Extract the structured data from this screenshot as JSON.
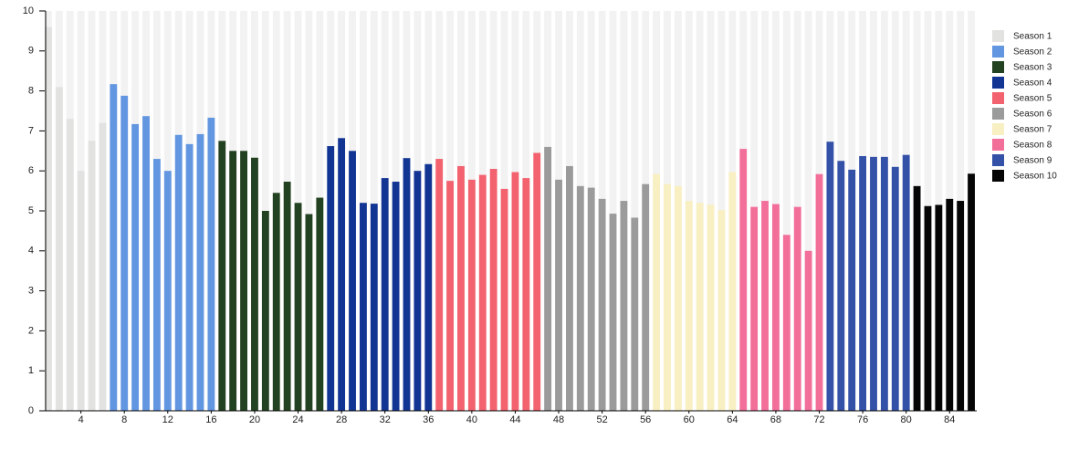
{
  "chart_data": {
    "type": "bar",
    "xlim": [
      0.5,
      86.5
    ],
    "xticks": [
      4,
      8,
      12,
      16,
      20,
      24,
      28,
      32,
      36,
      40,
      44,
      48,
      52,
      56,
      60,
      64,
      68,
      72,
      76,
      80,
      84
    ],
    "ylim": [
      0,
      10
    ],
    "yticks": [
      0,
      1,
      2,
      3,
      4,
      5,
      6,
      7,
      8,
      9,
      10
    ],
    "legend": "right",
    "series": [
      {
        "name": "Season 1",
        "color": "#e2e2e0",
        "x": [
          1,
          2,
          3,
          4,
          5,
          6
        ],
        "values": [
          9.6,
          8.1,
          7.3,
          6.0,
          6.75,
          7.2
        ]
      },
      {
        "name": "Season 2",
        "color": "#6396e0",
        "x": [
          7,
          8,
          9,
          10,
          11,
          12,
          13,
          14,
          15,
          16
        ],
        "values": [
          8.17,
          7.88,
          7.17,
          7.37,
          6.3,
          6.0,
          6.9,
          6.67,
          6.92,
          7.33
        ]
      },
      {
        "name": "Season 3",
        "color": "#234221",
        "x": [
          17,
          18,
          19,
          20,
          21,
          22,
          23,
          24,
          25,
          26
        ],
        "values": [
          6.75,
          6.5,
          6.5,
          6.33,
          5.0,
          5.45,
          5.73,
          5.2,
          4.92,
          5.33
        ]
      },
      {
        "name": "Season 4",
        "color": "#123594",
        "x": [
          27,
          28,
          29,
          30,
          31,
          32,
          33,
          34,
          35,
          36
        ],
        "values": [
          6.62,
          6.82,
          6.5,
          5.2,
          5.18,
          5.82,
          5.73,
          6.32,
          6.0,
          6.17
        ]
      },
      {
        "name": "Season 5",
        "color": "#f2626f",
        "x": [
          37,
          38,
          39,
          40,
          41,
          42,
          43,
          44,
          45,
          46
        ],
        "values": [
          6.3,
          5.75,
          6.12,
          5.78,
          5.9,
          6.05,
          5.55,
          5.97,
          5.82,
          6.45
        ]
      },
      {
        "name": "Season 6",
        "color": "#9b9b9b",
        "x": [
          47,
          48,
          49,
          50,
          51,
          52,
          53,
          54,
          55,
          56
        ],
        "values": [
          6.6,
          5.78,
          6.12,
          5.62,
          5.58,
          5.3,
          4.93,
          5.25,
          4.83,
          5.67
        ]
      },
      {
        "name": "Season 7",
        "color": "#f8efc2",
        "x": [
          57,
          58,
          59,
          60,
          61,
          62,
          63,
          64
        ],
        "values": [
          5.92,
          5.67,
          5.62,
          5.25,
          5.2,
          5.15,
          5.02,
          5.97
        ]
      },
      {
        "name": "Season 8",
        "color": "#f26f9a",
        "x": [
          65,
          66,
          67,
          68,
          69,
          70,
          71,
          72
        ],
        "values": [
          6.55,
          5.1,
          5.25,
          5.17,
          4.4,
          5.1,
          4.0,
          5.92
        ]
      },
      {
        "name": "Season 9",
        "color": "#3451a8",
        "x": [
          73,
          74,
          75,
          76,
          77,
          78,
          79,
          80
        ],
        "values": [
          6.73,
          6.25,
          6.03,
          6.37,
          6.35,
          6.35,
          6.1,
          6.4
        ]
      },
      {
        "name": "Season 10",
        "color": "#050505",
        "x": [
          81,
          82,
          83,
          84,
          85,
          86
        ],
        "values": [
          5.62,
          5.12,
          5.15,
          5.3,
          5.25,
          5.93
        ]
      }
    ]
  }
}
